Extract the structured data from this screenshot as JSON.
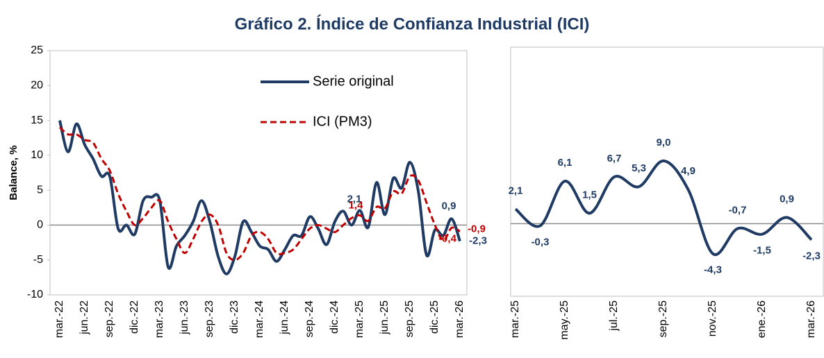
{
  "chart_data": [
    {
      "type": "line",
      "title": "Gráfico 2. Índice de Confianza Industrial (ICI)",
      "y_label": "Balance, %",
      "categories": [
        "mar.-22",
        null,
        null,
        "jun.-22",
        null,
        null,
        "sep.-22",
        null,
        null,
        "dic.-22",
        null,
        null,
        "mar.-23",
        null,
        null,
        "jun.-23",
        null,
        null,
        "sep.-23",
        null,
        null,
        "dic.-23",
        null,
        null,
        "mar.-24",
        null,
        null,
        "jun.-24",
        null,
        null,
        "sep.-24",
        null,
        null,
        "dic.-24",
        null,
        null,
        "mar.-25",
        null,
        null,
        "jun.-25",
        null,
        null,
        "sep.-25",
        null,
        null,
        "dic.-25",
        null,
        null,
        "mar.-26"
      ],
      "series": [
        {
          "name": "Serie original",
          "color": "#1f3b64",
          "dash": false,
          "values": [
            15,
            10.5,
            14.5,
            11.5,
            9.5,
            7,
            7,
            -0.5,
            0,
            -1.3,
            3.5,
            4,
            3.5,
            -6,
            -3,
            -1.5,
            0.5,
            3.5,
            0.5,
            -4.5,
            -7,
            -4.5,
            0.5,
            -1,
            -3,
            -3.5,
            -5.2,
            -3.5,
            -1.5,
            -1.5,
            1.2,
            -0.5,
            -2.8,
            0.5,
            2,
            0,
            2.1,
            -0.3,
            6.1,
            1.5,
            6.7,
            5.3,
            9,
            4.9,
            -4.3,
            -0.7,
            -1.5,
            0.9,
            -2.3
          ],
          "value_labels": [
            null,
            null,
            null,
            null,
            null,
            null,
            null,
            null,
            null,
            null,
            null,
            null,
            null,
            null,
            null,
            null,
            null,
            null,
            null,
            null,
            null,
            null,
            null,
            null,
            null,
            null,
            null,
            null,
            null,
            null,
            null,
            null,
            null,
            null,
            null,
            null,
            "2,1",
            null,
            null,
            null,
            null,
            null,
            null,
            null,
            null,
            null,
            null,
            "0,9",
            "-2,3"
          ]
        },
        {
          "name": "ICI (PM3)",
          "color": "#c00000",
          "dash": true,
          "values": [
            14,
            13,
            13,
            12.2,
            11.8,
            9.5,
            7.8,
            4.5,
            2,
            0,
            1,
            2.5,
            3.5,
            0.5,
            -2,
            -4,
            -2,
            0.5,
            1.5,
            0,
            -4,
            -5,
            -4,
            -1.5,
            -1,
            -2,
            -4,
            -4,
            -3.5,
            -2,
            -0.5,
            0,
            -0.5,
            -1,
            0,
            1,
            1.4,
            0.6,
            2.6,
            2.4,
            4.8,
            4.5,
            7,
            6.4,
            3.2,
            0,
            -2.2,
            -0.4,
            -0.9
          ],
          "value_labels": [
            null,
            null,
            null,
            null,
            null,
            null,
            null,
            null,
            null,
            null,
            null,
            null,
            null,
            null,
            null,
            null,
            null,
            null,
            null,
            null,
            null,
            null,
            null,
            null,
            null,
            null,
            null,
            null,
            null,
            null,
            null,
            null,
            null,
            null,
            null,
            null,
            "1,4",
            null,
            null,
            null,
            null,
            null,
            null,
            null,
            null,
            null,
            null,
            "-0,4",
            "-0,9"
          ]
        }
      ],
      "ylim": [
        -10,
        25
      ],
      "yticks": [
        -10,
        -5,
        0,
        5,
        10,
        15,
        20,
        25
      ]
    },
    {
      "type": "line",
      "categories": [
        "mar.-25",
        null,
        "may.-25",
        null,
        "jul.-25",
        null,
        "sep.-25",
        null,
        "nov.-25",
        null,
        "ene.-26",
        null,
        "mar.-26"
      ],
      "series": [
        {
          "color": "#1f3b64",
          "values": [
            2.1,
            -0.3,
            6.1,
            1.5,
            6.7,
            5.3,
            9.0,
            4.9,
            -4.3,
            -0.7,
            -1.5,
            0.9,
            -2.3
          ],
          "value_labels": [
            "2,1",
            "-0,3",
            "6,1",
            "1,5",
            "6,7",
            "5,3",
            "9,0",
            "4,9",
            "-4,3",
            "-0,7",
            "-1,5",
            "0,9",
            "-2,3"
          ]
        }
      ],
      "ylim": [
        -10,
        25
      ]
    }
  ]
}
